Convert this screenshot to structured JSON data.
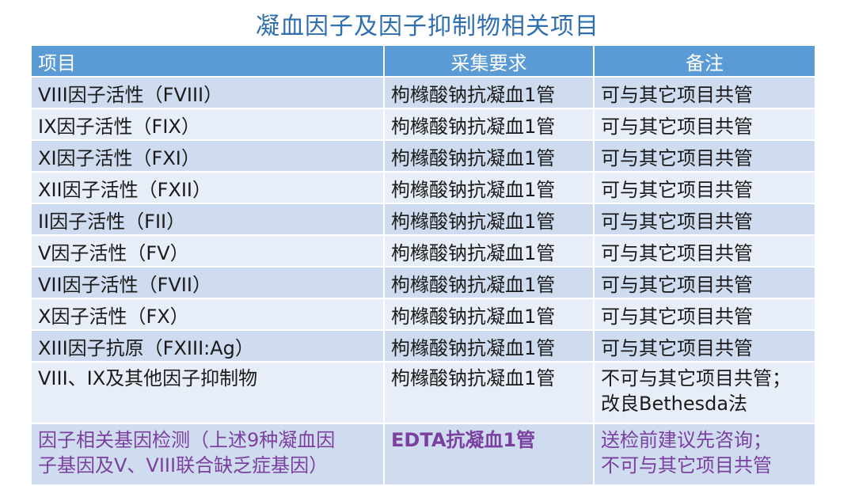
{
  "title": "凝血因子及因子抑制物相关项目",
  "headers": [
    "项目",
    "采集要求",
    "备注"
  ],
  "rows": [
    {
      "item": "VIII因子活性（FVIII）",
      "req": "枸橼酸钠抗凝血1管",
      "note": "可与其它项目共管"
    },
    {
      "item": "IX因子活性（FIX）",
      "req": "枸橼酸钠抗凝血1管",
      "note": "可与其它项目共管"
    },
    {
      "item": "XI因子活性（FXI）",
      "req": "枸橼酸钠抗凝血1管",
      "note": "可与其它项目共管"
    },
    {
      "item": "XII因子活性（FXII）",
      "req": "枸橼酸钠抗凝血1管",
      "note": "可与其它项目共管"
    },
    {
      "item": "II因子活性（FII）",
      "req": "枸橼酸钠抗凝血1管",
      "note": "可与其它项目共管"
    },
    {
      "item": "V因子活性（FV）",
      "req": "枸橼酸钠抗凝血1管",
      "note": "可与其它项目共管"
    },
    {
      "item": "VII因子活性（FVII）",
      "req": "枸橼酸钠抗凝血1管",
      "note": "可与其它项目共管"
    },
    {
      "item": "X因子活性（FX）",
      "req": "枸橼酸钠抗凝血1管",
      "note": "可与其它项目共管"
    },
    {
      "item": "XIII因子抗原（FXIII:Ag）",
      "req": "枸橼酸钠抗凝血1管",
      "note": "可与其它项目共管"
    }
  ],
  "row10": {
    "item": "VIII、IX及其他因子抑制物",
    "req": "枸橼酸钠抗凝血1管",
    "note_line1": "不可与其它项目共管；",
    "note_line2": "改良Bethesda法"
  },
  "row11": {
    "item_line1": "因子相关基因检测（上述9种凝血因",
    "item_line2": "子基因及V、VIII联合缺乏症基因）",
    "req": "EDTA抗凝血1管",
    "note_line1": "送检前建议先咨询；",
    "note_line2": "不可与其它项目共管"
  },
  "colors": {
    "title": "#2f6fb0",
    "header": "#5b9bd5",
    "row_dark": "#cfdcef",
    "row_light": "#e8eef7",
    "highlight": "#7b3fa0"
  }
}
